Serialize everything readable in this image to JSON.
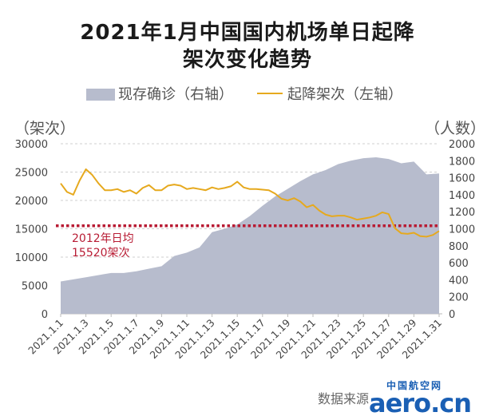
{
  "chart_data": {
    "type": "line",
    "title": "2021年1月中国国内机场单日起降",
    "subtitle": "架次变化趋势",
    "left_axis_unit": "（架次）",
    "right_axis_unit": "（人数）",
    "yticks_left": [
      "30000",
      "25000",
      "20000",
      "15000",
      "10000",
      "5000",
      "0"
    ],
    "yticks_right": [
      "2000",
      "1800",
      "1600",
      "1400",
      "1200",
      "1000",
      "800",
      "600",
      "400",
      "200",
      "0"
    ],
    "ylim_left": [
      0,
      30000
    ],
    "ylim_right": [
      0,
      2000
    ],
    "xtick_labels": [
      "2021.1.1",
      "2021.1.3",
      "2021.1.5",
      "2021.1.7",
      "2021.1.9",
      "2021.1.11",
      "2021.1.13",
      "2021.1.15",
      "2021.1.17",
      "2021.1.19",
      "2021.1.21",
      "2021.1.23",
      "2021.1.25",
      "2021.1.27",
      "2021.1.29",
      "2021.1.31"
    ],
    "grid": true,
    "legend": "top",
    "series": [
      {
        "name": "现存确诊（右轴）",
        "kind": "area",
        "axis": "right",
        "color": "#b7bccd",
        "x": [
          1,
          3,
          5,
          6,
          7,
          8,
          9,
          10,
          11,
          12,
          13,
          14,
          15,
          16,
          17,
          18,
          19,
          20,
          21,
          22,
          23,
          24,
          25,
          26,
          27,
          28,
          29,
          30,
          31
        ],
        "y": [
          380,
          430,
          480,
          480,
          500,
          530,
          560,
          680,
          720,
          780,
          960,
          1000,
          1050,
          1150,
          1270,
          1380,
          1470,
          1560,
          1640,
          1690,
          1760,
          1800,
          1830,
          1840,
          1820,
          1770,
          1790,
          1640,
          1650
        ]
      },
      {
        "name": "起降架次（左轴）",
        "kind": "line",
        "axis": "left",
        "color": "#e6a91e",
        "x": [
          1,
          1.5,
          2,
          2.5,
          3,
          3.5,
          4,
          4.5,
          5,
          5.5,
          6,
          6.5,
          7,
          7.5,
          8,
          8.5,
          9,
          9.5,
          10,
          10.5,
          11,
          11.5,
          12,
          12.5,
          13,
          13.5,
          14,
          14.5,
          15,
          15.5,
          16,
          16.5,
          17,
          17.5,
          18,
          18.5,
          19,
          19.5,
          20,
          20.5,
          21,
          21.5,
          22,
          22.5,
          23,
          23.5,
          24,
          24.5,
          25,
          25.5,
          26,
          26.5,
          27,
          27.5,
          28,
          28.5,
          29,
          29.5,
          30,
          30.5,
          31
        ],
        "y": [
          23000,
          21500,
          21000,
          23500,
          25500,
          24500,
          23000,
          21800,
          21800,
          22000,
          21500,
          21800,
          21200,
          22200,
          22700,
          21800,
          21800,
          22600,
          22800,
          22600,
          22000,
          22200,
          22000,
          21800,
          22300,
          22000,
          22200,
          22500,
          23300,
          22300,
          22000,
          22000,
          21900,
          21800,
          21200,
          20300,
          20000,
          20400,
          19800,
          18800,
          19200,
          18200,
          17500,
          17200,
          17300,
          17300,
          17000,
          16600,
          16800,
          17000,
          17300,
          17900,
          17600,
          15100,
          14200,
          14100,
          14300,
          13700,
          13600,
          13900,
          14600
        ]
      }
    ],
    "reference_line": {
      "value": 15520,
      "axis": "left",
      "label_line1": "2012年日均",
      "label_line2": "15520架次",
      "color": "#b81c34"
    }
  },
  "legend_items": [
    {
      "label": "现存确诊（右轴）",
      "color": "#b7bccd"
    },
    {
      "label": "起降架次（左轴）",
      "color": "#e6a91e"
    }
  ],
  "source": "数据来源",
  "watermark": {
    "chinese": "中国航空网",
    "latin": "aero.cn"
  }
}
